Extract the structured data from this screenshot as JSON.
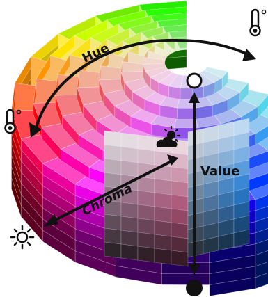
{
  "labels": {
    "hue": "Hue",
    "chroma": "Chroma",
    "value": "Value"
  },
  "icons": {
    "top_right": "thermometer-icon",
    "left": "thermometer-icon",
    "shade": "sun-cloud-icon",
    "bottom_left": "sun-icon",
    "value_top": "hollow-circle-icon",
    "value_bottom": "filled-circle-icon"
  },
  "colors": {
    "arrow": "#111111",
    "white_marker": "#ffffff",
    "black_marker": "#111111"
  }
}
